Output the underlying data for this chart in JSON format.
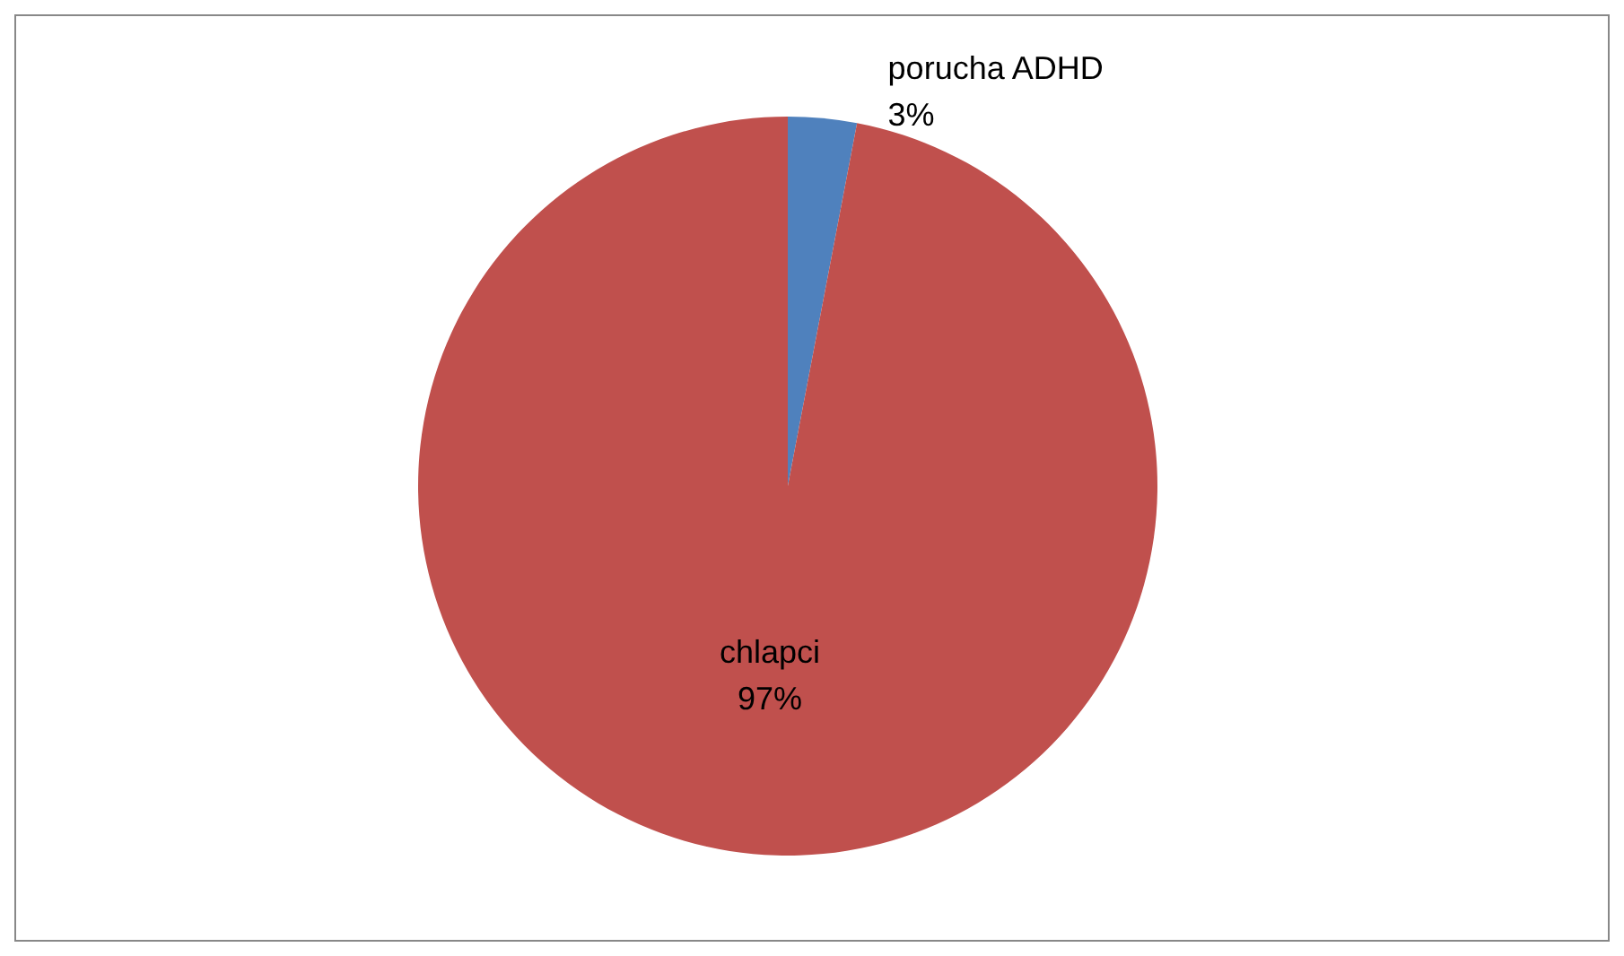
{
  "chart_data": {
    "type": "pie",
    "categories": [
      "porucha ADHD",
      "chlapci"
    ],
    "values": [
      3,
      97
    ],
    "colors": [
      "#4f81bd",
      "#c0504d"
    ],
    "value_labels": [
      "3%",
      "97%"
    ],
    "legend": false
  }
}
